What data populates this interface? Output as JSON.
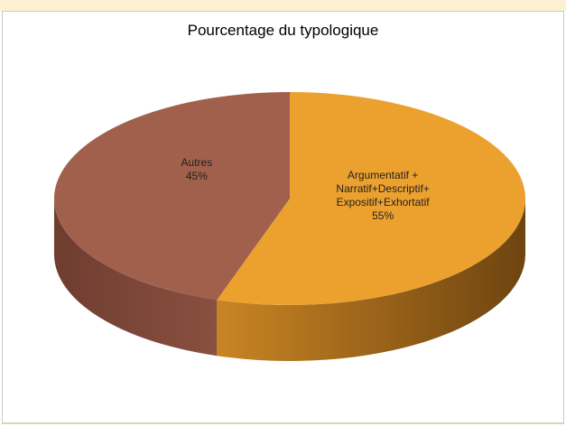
{
  "chart_data": {
    "type": "pie",
    "title": "Pourcentage du typologique",
    "categories": [
      "Argumentatif + Narratif+Descriptif+ Expositif+Exhortatif",
      "Autres"
    ],
    "values": [
      55,
      45
    ],
    "value_labels": [
      "55%",
      "45%"
    ],
    "colors": [
      "#eca12f",
      "#a0604b"
    ],
    "three_d": true
  }
}
